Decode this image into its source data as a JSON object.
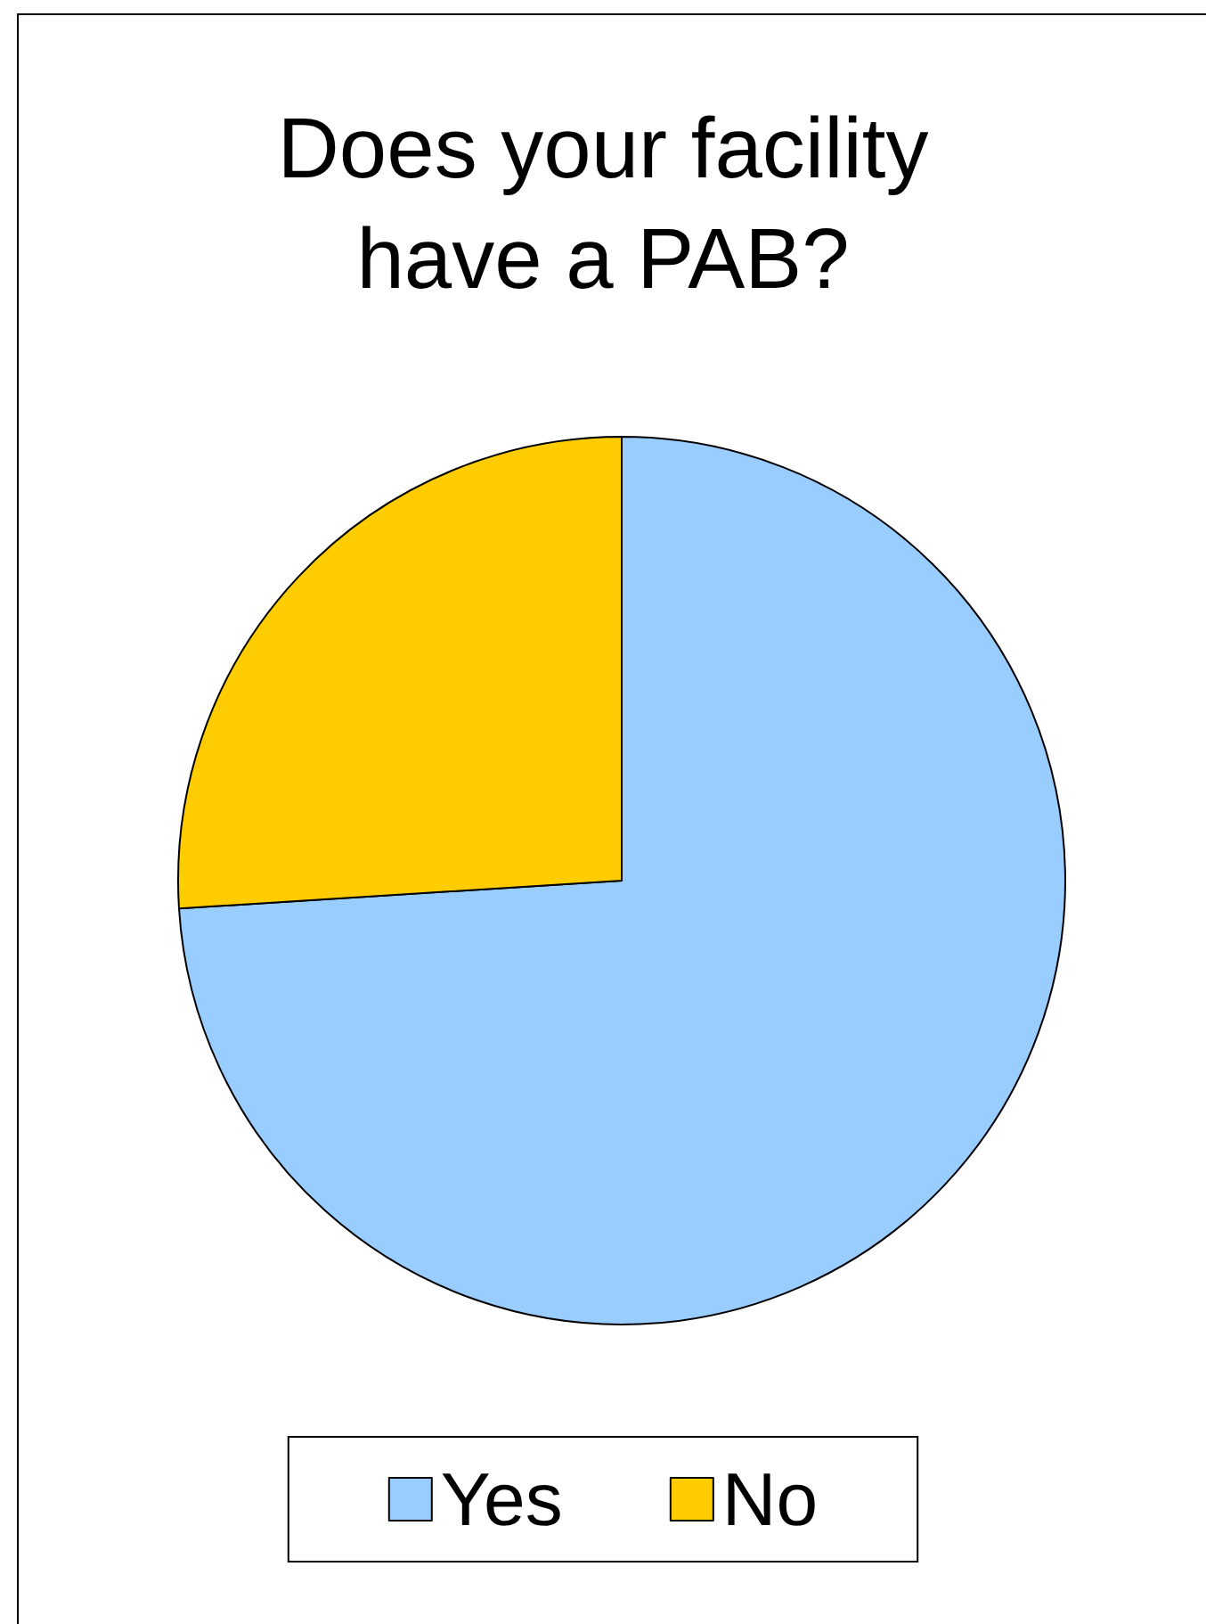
{
  "chart_data": {
    "type": "pie",
    "title": "Does your facility\nhave a PAB?",
    "categories": [
      "Yes",
      "No"
    ],
    "values": [
      74,
      26
    ],
    "colors": [
      "#99ccff",
      "#ffcc00"
    ],
    "legend": "bottom"
  }
}
